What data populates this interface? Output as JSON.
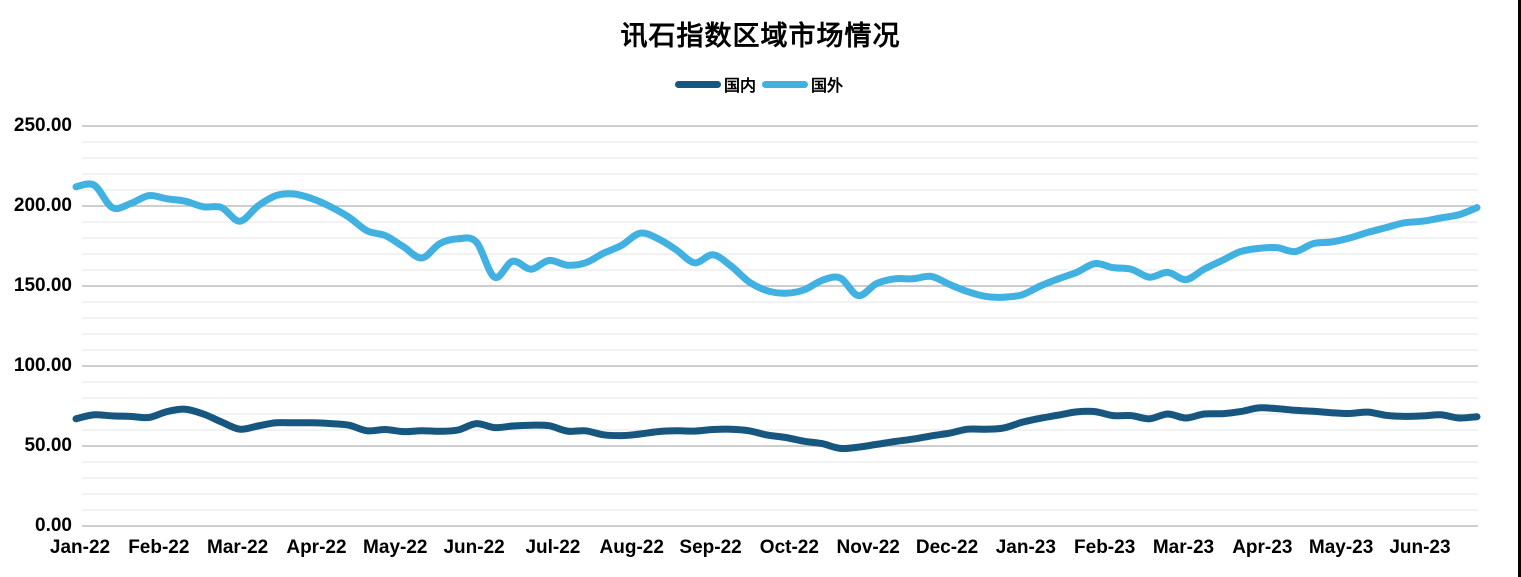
{
  "chart_data": {
    "type": "line",
    "title": "讯石指数区域市场情况",
    "xlabel": "",
    "ylabel": "",
    "ylim": [
      0,
      250
    ],
    "y_tick_values": [
      0,
      50,
      100,
      150,
      200,
      250
    ],
    "y_tick_labels": [
      "0.00",
      "50.00",
      "100.00",
      "150.00",
      "200.00",
      "250.00"
    ],
    "x_tick_labels": [
      "Jan-22",
      "Feb-22",
      "Mar-22",
      "Apr-22",
      "May-22",
      "Jun-22",
      "Jul-22",
      "Aug-22",
      "Sep-22",
      "Oct-22",
      "Nov-22",
      "Dec-22",
      "Jan-23",
      "Feb-23",
      "Mar-23",
      "Apr-23",
      "May-23",
      "Jun-23"
    ],
    "grid": {
      "major_interval": 50,
      "minor_interval": 10,
      "major_color": "#BDBDBD",
      "minor_color": "#E6E6E6"
    },
    "legend": {
      "position": "top-center",
      "entries": [
        {
          "label": "国内",
          "color": "#17567E"
        },
        {
          "label": "国外",
          "color": "#41B1E1"
        }
      ]
    },
    "series": [
      {
        "name": "国内",
        "color": "#17567E",
        "values": [
          67,
          69.5,
          68.8,
          68.5,
          67.8,
          71.5,
          73,
          70,
          65,
          60.5,
          62.5,
          64.5,
          64.5,
          64.5,
          64,
          63,
          59.5,
          60.3,
          59,
          59.5,
          59.2,
          60,
          64,
          61.5,
          62.5,
          63,
          62.7,
          59.3,
          59.5,
          57,
          56.5,
          57.5,
          59,
          59.5,
          59.3,
          60.3,
          60.5,
          59.5,
          56.8,
          55.3,
          53,
          51.5,
          48.5,
          49.3,
          51,
          52.8,
          54.3,
          56.3,
          58,
          60.5,
          60.5,
          61.3,
          64.8,
          67.3,
          69.3,
          71.3,
          71.5,
          69,
          69,
          67,
          70,
          67.5,
          70,
          70.2,
          71.5,
          73.8,
          73.4,
          72.3,
          71.7,
          70.8,
          70.3,
          71.2,
          69.2,
          68.5,
          68.8,
          69.5,
          67.5,
          68.3
        ]
      },
      {
        "name": "国外",
        "color": "#41B1E1",
        "values": [
          212,
          213,
          199,
          201.5,
          206.5,
          204.5,
          203,
          199.5,
          199,
          190.5,
          200,
          206.5,
          207.5,
          204.5,
          199.5,
          193,
          184.5,
          181.5,
          174.5,
          167.5,
          176.5,
          179.5,
          177.5,
          155.5,
          165.5,
          160.5,
          166,
          163,
          164.5,
          170.5,
          175.5,
          183,
          179.5,
          172.5,
          164.5,
          169.5,
          162.5,
          152.5,
          147,
          145.5,
          147.5,
          153.5,
          155,
          144,
          151.5,
          154.5,
          154.5,
          156,
          151,
          146.5,
          143.5,
          143,
          144.5,
          150,
          154.5,
          158.5,
          164,
          161.5,
          160.5,
          155.5,
          158.5,
          154,
          160.5,
          166,
          171.5,
          173.5,
          174,
          171.5,
          176.5,
          177.5,
          180,
          183.5,
          186.5,
          189.5,
          190.5,
          192.5,
          194.5,
          199
        ]
      }
    ]
  },
  "window": {
    "right_border_color": "#000000"
  }
}
